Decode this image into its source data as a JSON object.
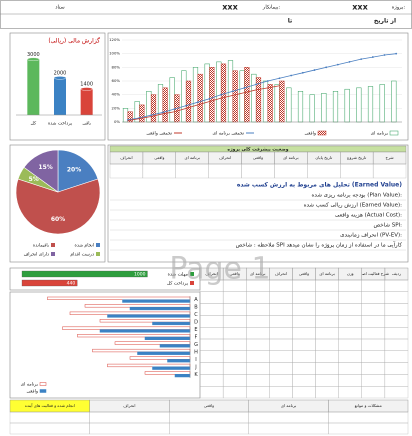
{
  "header": {
    "project_label": "پروژه:",
    "project": "xxx",
    "contractor_label": "پیمانکار:",
    "contractor": "xxx",
    "unit_label": "ستاد",
    "from_label": "از تاریخ",
    "to_label": "تا"
  },
  "watermark": "Page 1",
  "chart_data": [
    {
      "type": "bar",
      "title": "گزارش مالی (ریالی)",
      "categories": [
        "کل",
        "پرداخت شده",
        "باقی"
      ],
      "values": [
        3000,
        2000,
        1400
      ],
      "colors": [
        "#5cb85c",
        "#3b82c4",
        "#d9443a"
      ],
      "ylim": [
        0,
        3500
      ],
      "data_labels": true
    },
    {
      "type": "combo",
      "categories": [
        null,
        null,
        null,
        null,
        null,
        null,
        null,
        null,
        null,
        null,
        null,
        null,
        null,
        null,
        null,
        null,
        null,
        null,
        null,
        null,
        null,
        null,
        null,
        null
      ],
      "ylim": [
        0,
        120
      ],
      "yticks": [
        {
          "value": 0,
          "label": "0%"
        },
        {
          "value": 20,
          "label": "20%"
        },
        {
          "value": 40,
          "label": "40%"
        },
        {
          "value": 60,
          "label": "60%"
        },
        {
          "value": 80,
          "label": "80%"
        },
        {
          "value": 100,
          "label": "100%"
        },
        {
          "value": 120,
          "label": "120%"
        }
      ],
      "grid": true,
      "series": [
        {
          "name": "برنامه ای",
          "color": "#2e9e5b",
          "style": "outline",
          "values": [
            20,
            30,
            45,
            55,
            65,
            75,
            80,
            85,
            88,
            90,
            75,
            70,
            60,
            55,
            50,
            45,
            40,
            42,
            45,
            48,
            50,
            52,
            55,
            60
          ]
        },
        {
          "name": "واقعی",
          "color": "#c0392b",
          "style": "hatch",
          "values": [
            15,
            25,
            40,
            50,
            40,
            60,
            70,
            80,
            85,
            75,
            80,
            65,
            55,
            60,
            null,
            null,
            null,
            null,
            null,
            null,
            null,
            null,
            null,
            null
          ]
        },
        {
          "name": "تجمعی برنامه ای",
          "color": "#4a7fc1",
          "style": "line-marker",
          "values": [
            3,
            6,
            10,
            14,
            19,
            24,
            29,
            34,
            40,
            45,
            50,
            55,
            60,
            64,
            68,
            72,
            76,
            80,
            84,
            88,
            92,
            95,
            98,
            100
          ]
        },
        {
          "name": "تجمعی واقعی",
          "color": "#c0392b",
          "style": "line",
          "values": [
            2,
            5,
            8,
            12,
            15,
            20,
            25,
            30,
            35,
            39,
            43,
            47,
            50,
            53,
            null,
            null,
            null,
            null,
            null,
            null,
            null,
            null,
            null,
            null
          ]
        }
      ]
    },
    {
      "type": "pie",
      "categories": [
        "انجام شده",
        "باقیمانده",
        "درست اقدام",
        "دارای انحراف"
      ],
      "values": [
        20,
        60,
        5,
        15
      ],
      "value_labels": [
        "20%",
        "60%",
        "5%",
        "15%"
      ],
      "colors": [
        "#4a7fc1",
        "#c0504d",
        "#9bbb59",
        "#8064a2"
      ]
    },
    {
      "type": "hbar",
      "categories": [
        "مهلت شده",
        "پرداخت کل"
      ],
      "values": [
        1000,
        440
      ],
      "colors": [
        "#2e9e3e",
        "#d9443a"
      ],
      "xlim": [
        0,
        1100
      ],
      "data_labels": true
    },
    {
      "type": "hbar",
      "categories": [
        "A",
        "B",
        "C",
        "D",
        "E",
        "F",
        "G",
        "H",
        "I",
        "J",
        "K"
      ],
      "xlim": [
        0,
        100
      ],
      "reversed": true,
      "series": [
        {
          "name": "برنامه ای",
          "color": "#d9443a",
          "style": "outline",
          "values": [
            95,
            70,
            80,
            60,
            85,
            75,
            50,
            65,
            40,
            55,
            30
          ]
        },
        {
          "name": "واقعی",
          "color": "#3b82c4",
          "values": [
            45,
            40,
            55,
            25,
            60,
            30,
            20,
            35,
            15,
            25,
            10
          ]
        }
      ]
    }
  ],
  "analysis": {
    "title": "تحلیل های مربوط به ارزش کسب شده (Earned Value)",
    "lines": [
      "بودجه برنامه ریزی شده (Plan Value):",
      "ارزش ریالی کسب شده (Earned Value):",
      "هزینه واقعی (Actual Cost):",
      "شاخص SPI:",
      "انحراف زمانبندی (PV-EV):",
      "ملاحظه : شاخص SPI کارآیی ما در استفاده از زمان پروژه را نشان میدهد"
    ]
  },
  "tables": {
    "summary": {
      "title": "وضعیت پیشرفت کلی پروژه",
      "headers": [
        "شرح",
        "تاریخ شروع",
        "تاریخ پایان",
        "برنامه ای",
        "واقعی",
        "انحراف",
        "برنامه ای",
        "واقعی",
        "انحراف"
      ]
    },
    "activities": {
      "headers": [
        "ردیف",
        "شرح فعالیت اصلی",
        "وزن",
        "برنامه ای",
        "واقعی",
        "انحراف",
        "برنامه ای",
        "واقعی",
        "انحراف"
      ]
    },
    "bottom": {
      "headers": [
        "مشکلات و موانع",
        "برنامه ای",
        "واقعی",
        "انحراف",
        "انجام شده و فعالیت های آینده"
      ]
    }
  }
}
